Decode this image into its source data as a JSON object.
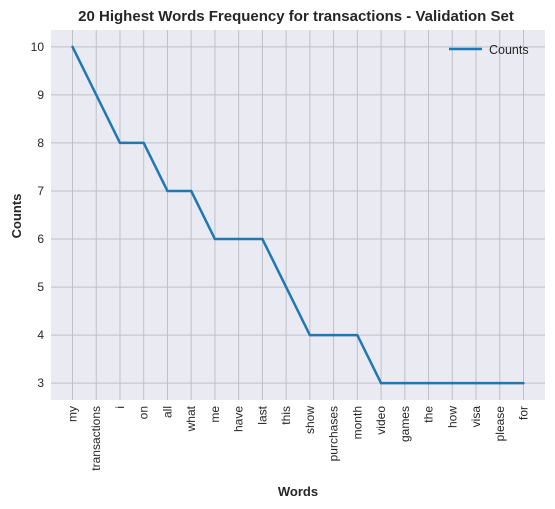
{
  "chart_data": {
    "type": "line",
    "title": "20 Highest Words Frequency for transactions - Validation Set",
    "xlabel": "Words",
    "ylabel": "Counts",
    "categories": [
      "my",
      "transactions",
      "i",
      "on",
      "all",
      "what",
      "me",
      "have",
      "last",
      "this",
      "show",
      "purchases",
      "month",
      "video",
      "games",
      "the",
      "how",
      "visa",
      "please",
      "for"
    ],
    "series": [
      {
        "name": "Counts",
        "values": [
          10,
          9,
          8,
          8,
          7,
          7,
          6,
          6,
          6,
          5,
          4,
          4,
          4,
          3,
          3,
          3,
          3,
          3,
          3,
          3
        ]
      }
    ],
    "ylim": [
      2.65,
      10.35
    ],
    "yticks": [
      3,
      4,
      5,
      6,
      7,
      8,
      9,
      10
    ],
    "grid": true,
    "legend": "top-right",
    "colors": {
      "line": "#1f77b4",
      "plot_bg": "#eaeaf2",
      "grid": "#c0c0c8"
    }
  }
}
